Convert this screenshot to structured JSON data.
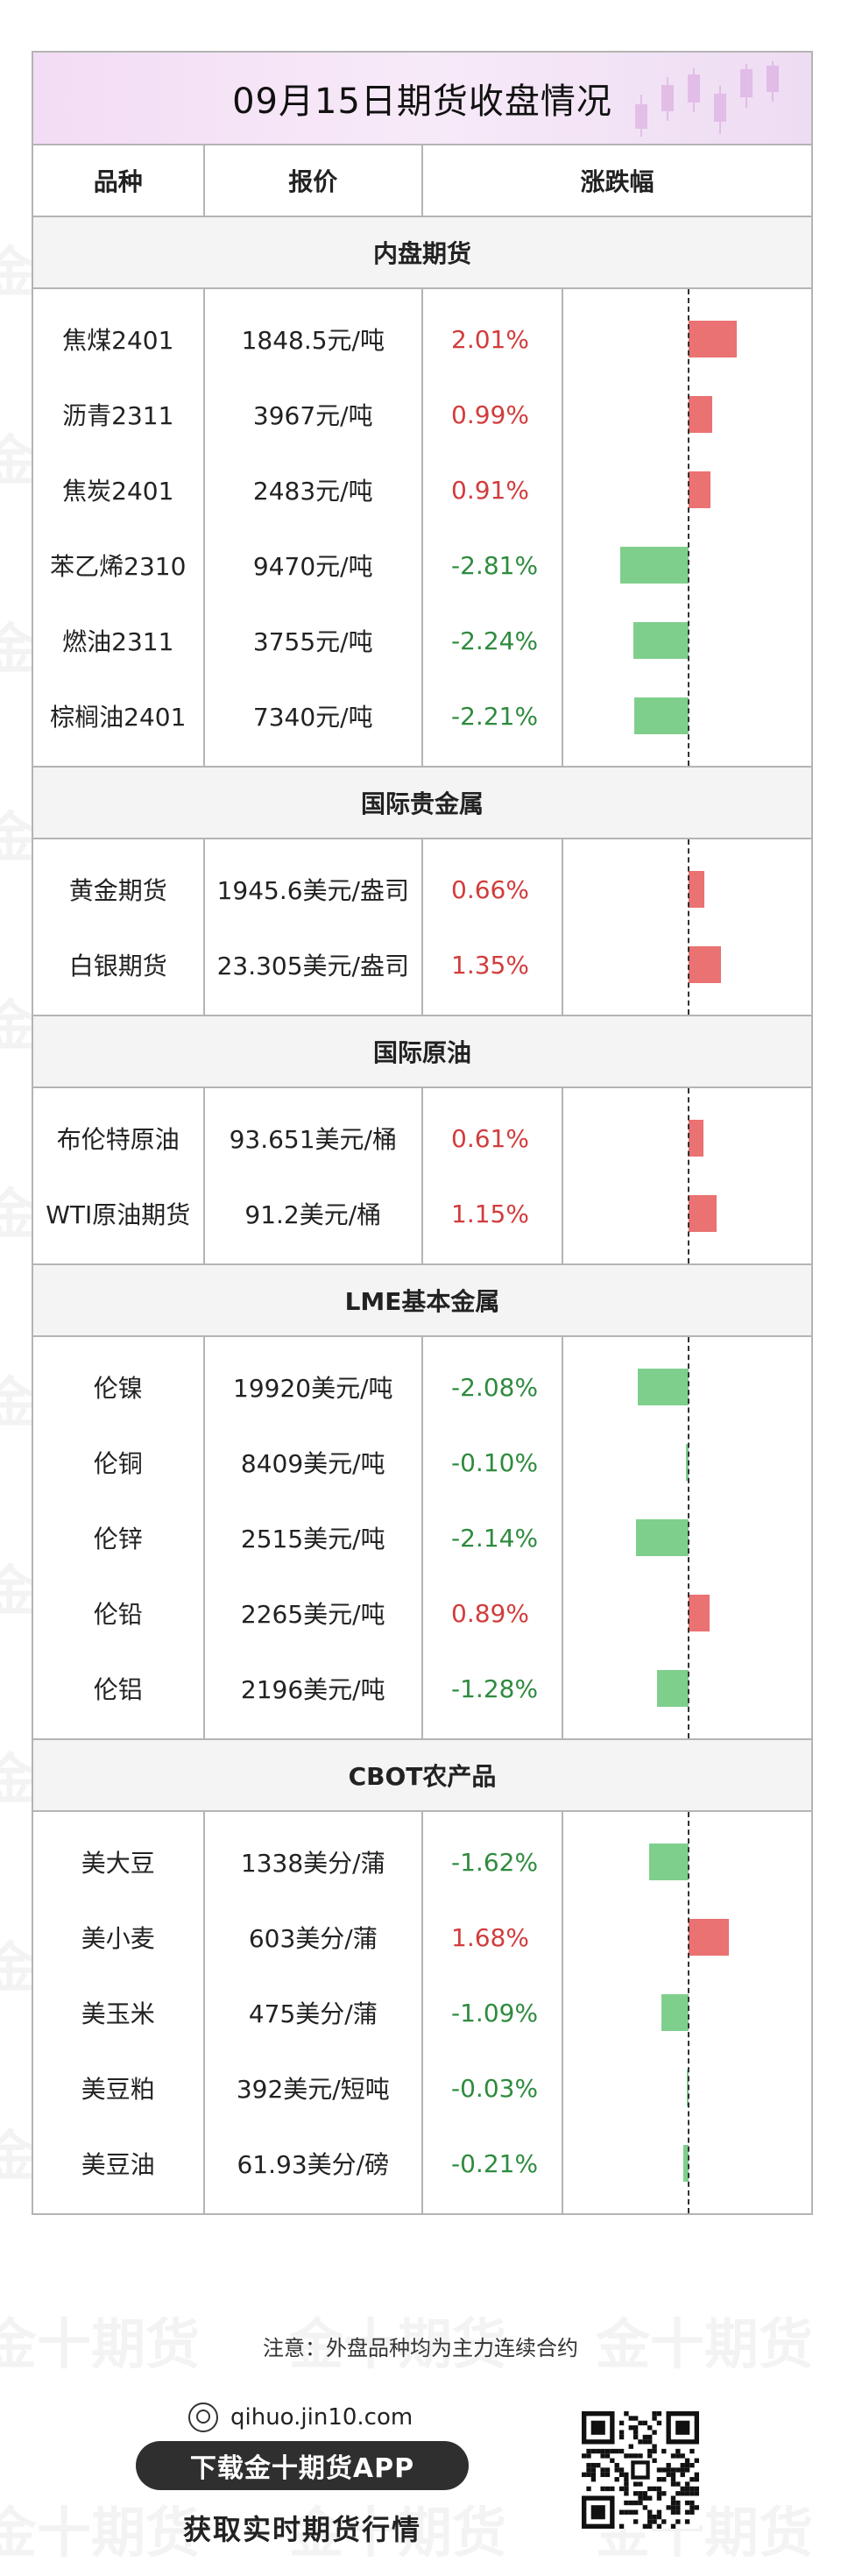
{
  "title": "09月15日期货收盘情况",
  "watermark": "金十期货",
  "columns": {
    "variety": "品种",
    "price": "报价",
    "change": "涨跌幅"
  },
  "sections": [
    {
      "name": "内盘期货",
      "rows": [
        {
          "name": "焦煤2401",
          "price": "1848.5元/吨",
          "change": "2.01%",
          "value": 2.01
        },
        {
          "name": "沥青2311",
          "price": "3967元/吨",
          "change": "0.99%",
          "value": 0.99
        },
        {
          "name": "焦炭2401",
          "price": "2483元/吨",
          "change": "0.91%",
          "value": 0.91
        },
        {
          "name": "苯乙烯2310",
          "price": "9470元/吨",
          "change": "-2.81%",
          "value": -2.81
        },
        {
          "name": "燃油2311",
          "price": "3755元/吨",
          "change": "-2.24%",
          "value": -2.24
        },
        {
          "name": "棕榈油2401",
          "price": "7340元/吨",
          "change": "-2.21%",
          "value": -2.21
        }
      ]
    },
    {
      "name": "国际贵金属",
      "rows": [
        {
          "name": "黄金期货",
          "price": "1945.6美元/盎司",
          "change": "0.66%",
          "value": 0.66
        },
        {
          "name": "白银期货",
          "price": "23.305美元/盎司",
          "change": "1.35%",
          "value": 1.35
        }
      ]
    },
    {
      "name": "国际原油",
      "rows": [
        {
          "name": "布伦特原油",
          "price": "93.651美元/桶",
          "change": "0.61%",
          "value": 0.61
        },
        {
          "name": "WTI原油期货",
          "price": "91.2美元/桶",
          "change": "1.15%",
          "value": 1.15
        }
      ]
    },
    {
      "name": "LME基本金属",
      "rows": [
        {
          "name": "伦镍",
          "price": "19920美元/吨",
          "change": "-2.08%",
          "value": -2.08
        },
        {
          "name": "伦铜",
          "price": "8409美元/吨",
          "change": "-0.10%",
          "value": -0.1
        },
        {
          "name": "伦锌",
          "price": "2515美元/吨",
          "change": "-2.14%",
          "value": -2.14
        },
        {
          "name": "伦铅",
          "price": "2265美元/吨",
          "change": "0.89%",
          "value": 0.89
        },
        {
          "name": "伦铝",
          "price": "2196美元/吨",
          "change": "-1.28%",
          "value": -1.28
        }
      ]
    },
    {
      "name": "CBOT农产品",
      "rows": [
        {
          "name": "美大豆",
          "price": "1338美分/蒲",
          "change": "-1.62%",
          "value": -1.62
        },
        {
          "name": "美小麦",
          "price": "603美分/蒲",
          "change": "1.68%",
          "value": 1.68
        },
        {
          "name": "美玉米",
          "price": "475美分/蒲",
          "change": "-1.09%",
          "value": -1.09
        },
        {
          "name": "美豆粕",
          "price": "392美元/短吨",
          "change": "-0.03%",
          "value": -0.03
        },
        {
          "name": "美豆油",
          "price": "61.93美分/磅",
          "change": "-0.21%",
          "value": -0.21
        }
      ]
    }
  ],
  "footer": {
    "note": "注意：外盘品种均为主力连续合约",
    "url": "qihuo.jin10.com",
    "button": "下载金十期货APP",
    "subtitle": "获取实时期货行情"
  },
  "colors": {
    "up": "#d23c3c",
    "down": "#2e8b3e",
    "up_bar": "#ea7272",
    "down_bar": "#7fcf8c"
  }
}
